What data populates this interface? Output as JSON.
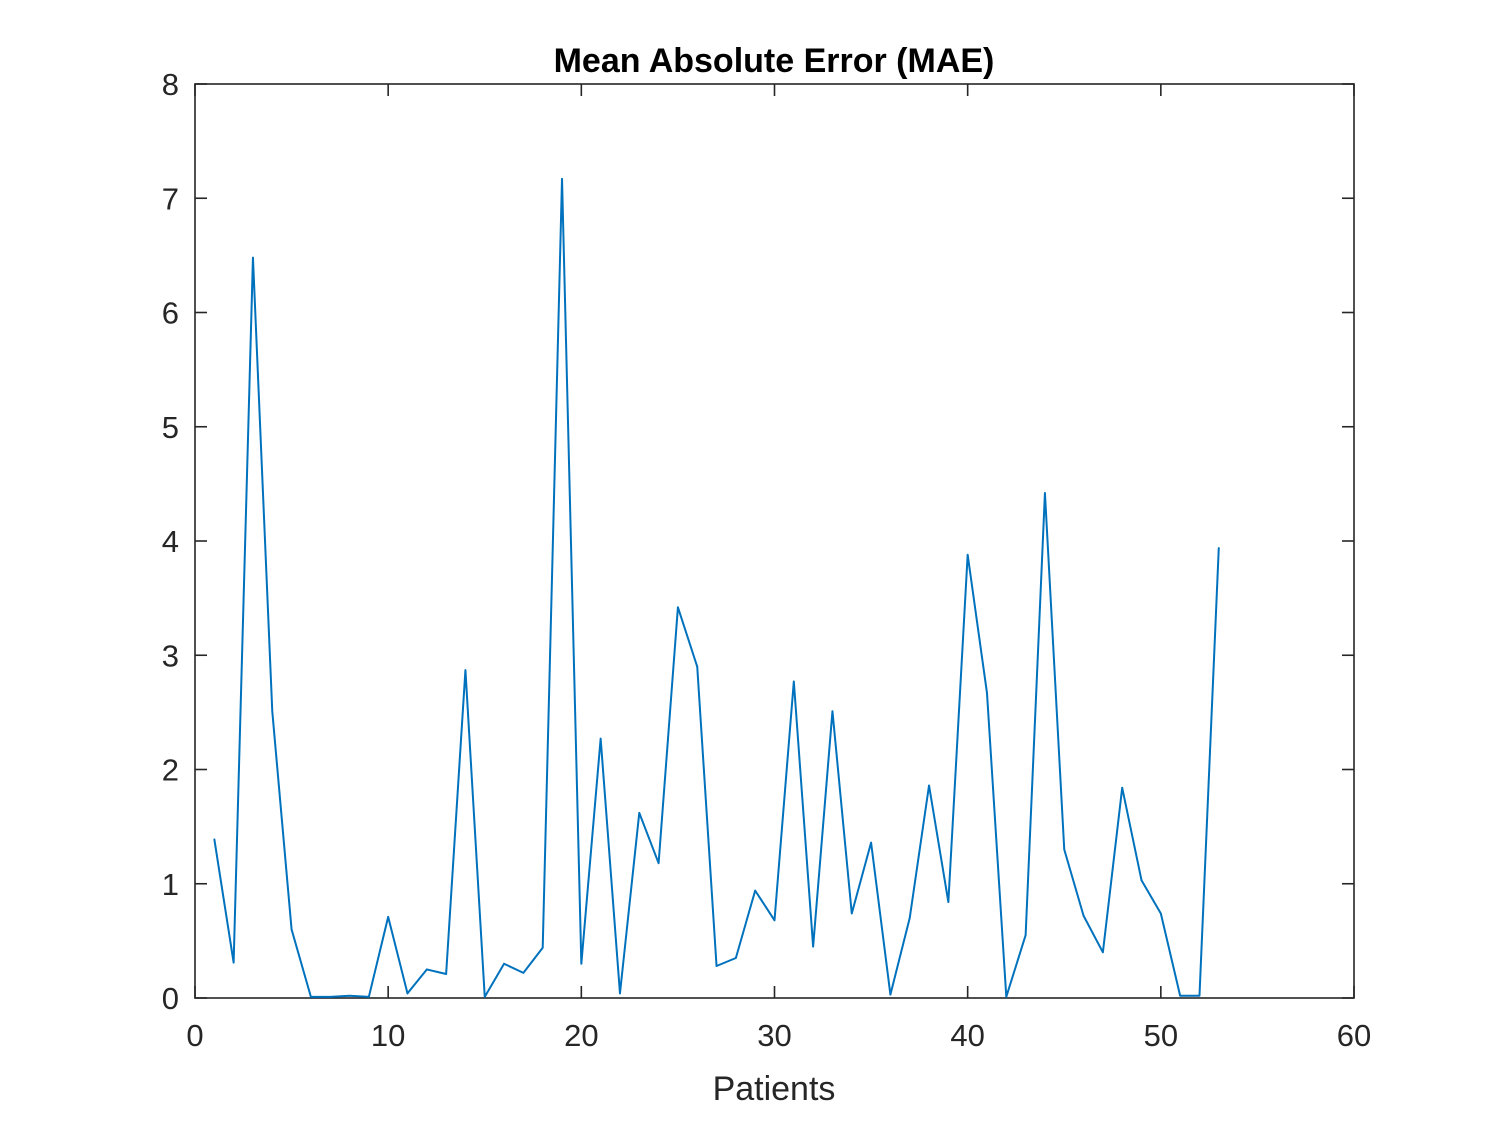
{
  "chart_data": {
    "type": "line",
    "title": "Mean Absolute Error (MAE)",
    "xlabel": "Patients",
    "ylabel": "",
    "xlim": [
      0,
      60
    ],
    "ylim": [
      0,
      8
    ],
    "xticks": [
      "0",
      "10",
      "20",
      "30",
      "40",
      "50",
      "60"
    ],
    "yticks": [
      "0",
      "1",
      "2",
      "3",
      "4",
      "5",
      "6",
      "7",
      "8"
    ],
    "grid": false,
    "legend": "none",
    "line_color": "#0072BD",
    "x": [
      1,
      2,
      3,
      4,
      5,
      6,
      7,
      8,
      9,
      10,
      11,
      12,
      13,
      14,
      15,
      16,
      17,
      18,
      19,
      20,
      21,
      22,
      23,
      24,
      25,
      26,
      27,
      28,
      29,
      30,
      31,
      32,
      33,
      34,
      35,
      36,
      37,
      38,
      39,
      40,
      41,
      42,
      43,
      44,
      45,
      46,
      47,
      48,
      49,
      50,
      51,
      52,
      53
    ],
    "y": [
      1.39,
      0.31,
      6.48,
      2.51,
      0.6,
      0.01,
      0.01,
      0.02,
      0.01,
      0.71,
      0.04,
      0.25,
      0.21,
      2.87,
      0.01,
      0.3,
      0.22,
      0.44,
      7.17,
      0.3,
      2.27,
      0.04,
      1.62,
      1.18,
      3.42,
      2.9,
      0.28,
      0.35,
      0.94,
      0.68,
      2.77,
      0.45,
      2.51,
      0.74,
      1.36,
      0.03,
      0.7,
      1.86,
      0.84,
      3.88,
      2.67,
      0.01,
      0.55,
      4.42,
      1.3,
      0.72,
      0.4,
      1.84,
      1.03,
      0.74,
      0.02,
      0.02,
      3.94
    ]
  }
}
